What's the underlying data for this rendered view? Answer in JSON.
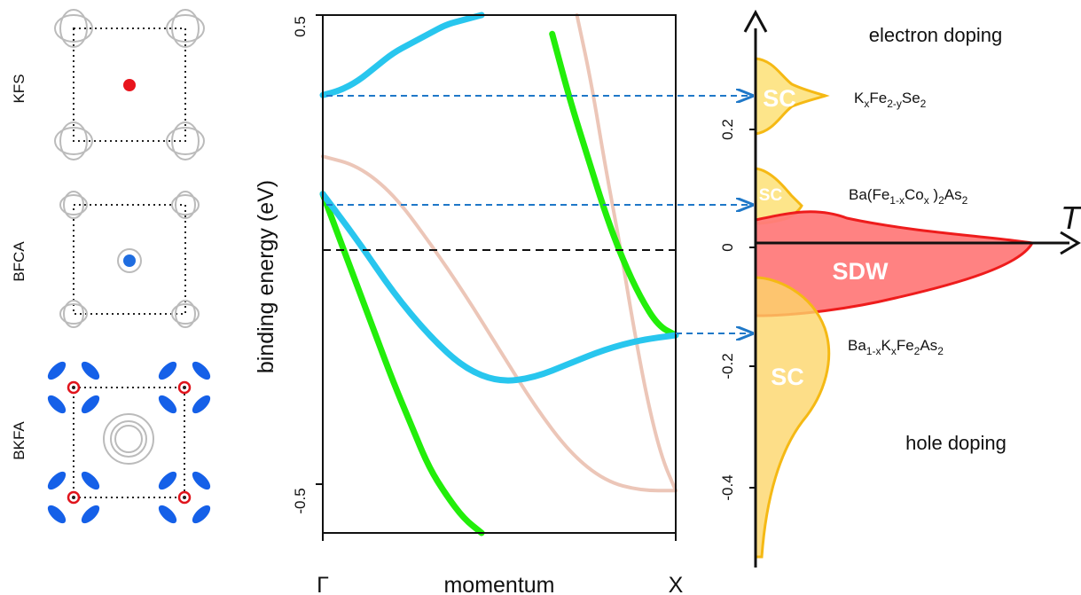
{
  "fs_panels": [
    {
      "label": "KFS",
      "center_dot_color": "#e8141c"
    },
    {
      "label": "BFCA",
      "center_dot_color": "#1f6de0"
    },
    {
      "label": "BKFA",
      "pocket_color": "#1560e8",
      "ring_color": "#e0141c"
    }
  ],
  "band_plot": {
    "ylabel": "binding energy (eV)",
    "xlabel": "momentum",
    "x_ticks": [
      "Γ",
      "X"
    ],
    "y_ticks": [
      "0.5",
      "-0.5"
    ],
    "ylim": [
      -0.6,
      0.5
    ],
    "fermi_level": 0,
    "colors": {
      "green": "#22ee0a",
      "blue": "#28c6ee",
      "pink": "#ecc6b8"
    },
    "bands": [
      {
        "color": "green",
        "x": [
          0,
          0.05,
          0.1,
          0.15,
          0.2,
          0.25,
          0.3,
          0.35,
          0.4,
          0.45
        ],
        "y": [
          0.12,
          0.02,
          -0.08,
          -0.18,
          -0.28,
          -0.37,
          -0.46,
          -0.52,
          -0.57,
          -0.6
        ]
      },
      {
        "color": "green",
        "x": [
          0.65,
          0.7,
          0.75,
          0.8,
          0.85,
          0.9,
          0.95,
          1.0
        ],
        "y": [
          0.46,
          0.32,
          0.2,
          0.08,
          -0.02,
          -0.1,
          -0.16,
          -0.18
        ]
      },
      {
        "color": "blue",
        "x": [
          0,
          0.05,
          0.1,
          0.15,
          0.2,
          0.25,
          0.3,
          0.35,
          0.4,
          0.45
        ],
        "y": [
          0.33,
          0.34,
          0.36,
          0.39,
          0.42,
          0.44,
          0.46,
          0.48,
          0.49,
          0.5
        ]
      },
      {
        "color": "blue",
        "x": [
          0,
          0.1,
          0.2,
          0.3,
          0.4,
          0.5,
          0.6,
          0.7,
          0.8,
          0.9,
          1.0
        ],
        "y": [
          0.12,
          0.02,
          -0.09,
          -0.18,
          -0.25,
          -0.28,
          -0.27,
          -0.24,
          -0.21,
          -0.19,
          -0.18
        ]
      },
      {
        "color": "pink",
        "x": [
          0,
          0.1,
          0.2,
          0.3,
          0.4,
          0.5,
          0.6,
          0.7,
          0.8,
          0.9,
          1.0
        ],
        "y": [
          0.2,
          0.18,
          0.12,
          0.02,
          -0.09,
          -0.21,
          -0.33,
          -0.43,
          -0.49,
          -0.51,
          -0.51
        ]
      },
      {
        "color": "pink",
        "x": [
          0.72,
          0.76,
          0.8,
          0.84,
          0.88,
          0.92,
          0.96,
          1.0
        ],
        "y": [
          0.5,
          0.36,
          0.18,
          0.02,
          -0.16,
          -0.32,
          -0.44,
          -0.51
        ]
      }
    ]
  },
  "phase_diagram": {
    "x_axis_label": "T",
    "y_ticks": [
      "0.2",
      "0",
      "-0.2",
      "-0.4"
    ],
    "electron_label": "electron doping",
    "hole_label": "hole doping",
    "colors": {
      "sdw_fill": "#ff7b7b",
      "sdw_edge": "#ee1c1c",
      "sc_fill": "#fde58a",
      "sc_edge": "#f5b914"
    },
    "phases": [
      {
        "label": "SC"
      },
      {
        "label": "SC"
      },
      {
        "label": "SDW"
      },
      {
        "label": "SC"
      }
    ],
    "compounds": [
      {
        "base": "K",
        "sub1": "x",
        "mid": "Fe",
        "sub2": "2-y",
        "end": "Se",
        "sub3": "2"
      },
      {
        "pre": "Ba(Fe",
        "sub1": "1-x",
        "mid": "Co",
        "sub2": "x",
        "post": " )",
        "sub3": "2",
        "end": "As",
        "sub4": "2"
      },
      {
        "pre": "Ba",
        "sub1": "1-x",
        "mid": "K",
        "sub2": "x",
        "post": "Fe",
        "sub3": "2",
        "end": "As",
        "sub4": "2"
      }
    ]
  }
}
